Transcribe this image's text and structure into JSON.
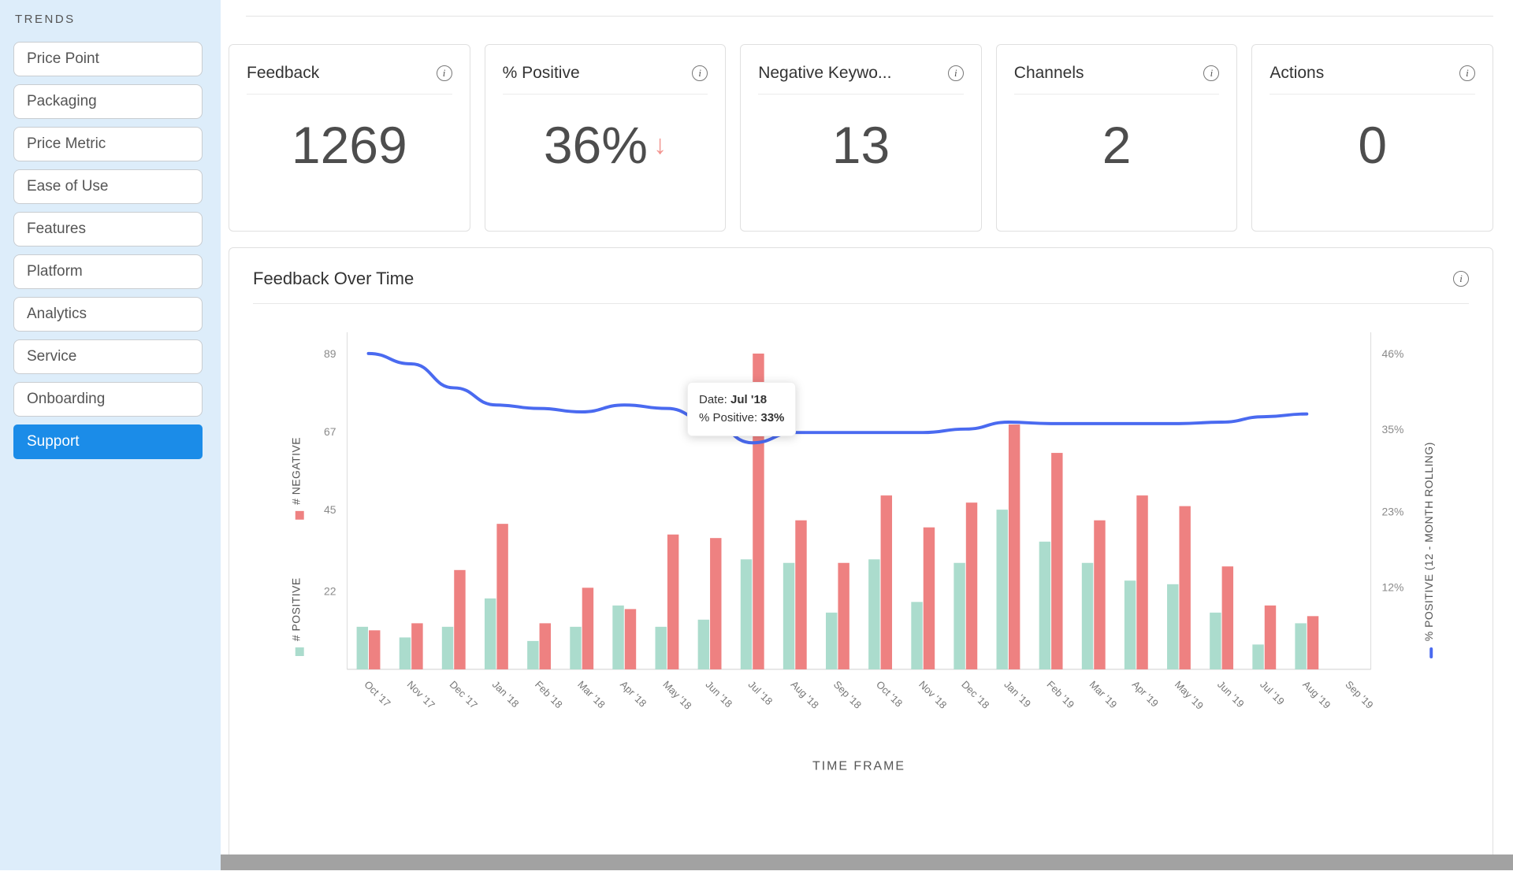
{
  "ui": {
    "info_icon_glyph": "i"
  },
  "colors": {
    "accent_blue": "#1b8ce8",
    "bar_negative": "#ee8181",
    "bar_positive": "#abdccd",
    "line_blue": "#4a6af0",
    "trend_arrow_red": "#f2948f",
    "sidebar_bg": "#ddedfa"
  },
  "sidebar": {
    "title": "TRENDS",
    "items": [
      {
        "label": "Price Point",
        "selected": false
      },
      {
        "label": "Packaging",
        "selected": false
      },
      {
        "label": "Price Metric",
        "selected": false
      },
      {
        "label": "Ease of Use",
        "selected": false
      },
      {
        "label": "Features",
        "selected": false
      },
      {
        "label": "Platform",
        "selected": false
      },
      {
        "label": "Analytics",
        "selected": false
      },
      {
        "label": "Service",
        "selected": false
      },
      {
        "label": "Onboarding",
        "selected": false
      },
      {
        "label": "Support",
        "selected": true
      }
    ]
  },
  "kpi_cards": [
    {
      "label": "Feedback",
      "value": "1269"
    },
    {
      "label": "% Positive",
      "value": "36%",
      "trend_arrow": "↓"
    },
    {
      "label": "Negative Keywo...",
      "value": "13"
    },
    {
      "label": "Channels",
      "value": "2"
    },
    {
      "label": "Actions",
      "value": "0"
    }
  ],
  "chart_card": {
    "tooltip": {
      "line1_label": "Date:",
      "line1_value": "Jul '18",
      "line2_label": "% Positive:",
      "line2_value": "33%"
    }
  },
  "chart_data": {
    "type": "combo bar+line",
    "title": "Feedback Over Time",
    "xlabel": "TIME FRAME",
    "categories": [
      "Oct '17",
      "Nov '17",
      "Dec '17",
      "Jan '18",
      "Feb '18",
      "Mar '18",
      "Apr '18",
      "May '18",
      "Jun '18",
      "Jul '18",
      "Aug '18",
      "Sep '18",
      "Oct '18",
      "Nov '18",
      "Dec '18",
      "Jan '19",
      "Feb '19",
      "Mar '19",
      "Apr '19",
      "May '19",
      "Jun '19",
      "Jul '19",
      "Aug '19",
      "Sep '19"
    ],
    "series": [
      {
        "name": "# POSITIVE",
        "kind": "bar",
        "color": "#abdccd",
        "values": [
          12,
          9,
          12,
          20,
          8,
          12,
          18,
          12,
          14,
          31,
          30,
          16,
          31,
          19,
          30,
          45,
          36,
          30,
          25,
          24,
          16,
          7,
          13,
          null
        ]
      },
      {
        "name": "# NEGATIVE",
        "kind": "bar",
        "color": "#ee8181",
        "values": [
          11,
          13,
          28,
          41,
          13,
          23,
          17,
          38,
          37,
          89,
          42,
          30,
          49,
          40,
          47,
          69,
          61,
          42,
          49,
          46,
          29,
          18,
          15,
          null
        ]
      },
      {
        "name": "% POSITIVE (12 - MONTH ROLLING)",
        "kind": "line",
        "axis": "right",
        "color": "#4a6af0",
        "values": [
          46,
          44.5,
          41,
          38.5,
          38,
          37.5,
          38.5,
          38,
          36,
          33,
          34.5,
          34.5,
          34.5,
          34.5,
          35,
          36,
          35.8,
          35.8,
          35.8,
          35.8,
          36,
          36.8,
          37.2,
          null
        ]
      }
    ],
    "left_axis": {
      "ticks": [
        22,
        45,
        67,
        89
      ],
      "range": [
        0,
        95
      ]
    },
    "right_axis": {
      "ticks": [
        12,
        23,
        35,
        46
      ],
      "unit": "%",
      "range": [
        0,
        49.1
      ]
    },
    "legend_position": "axis-labels",
    "grid": false,
    "highlighted_point": {
      "category": "Jul '18",
      "value": "33%"
    }
  }
}
